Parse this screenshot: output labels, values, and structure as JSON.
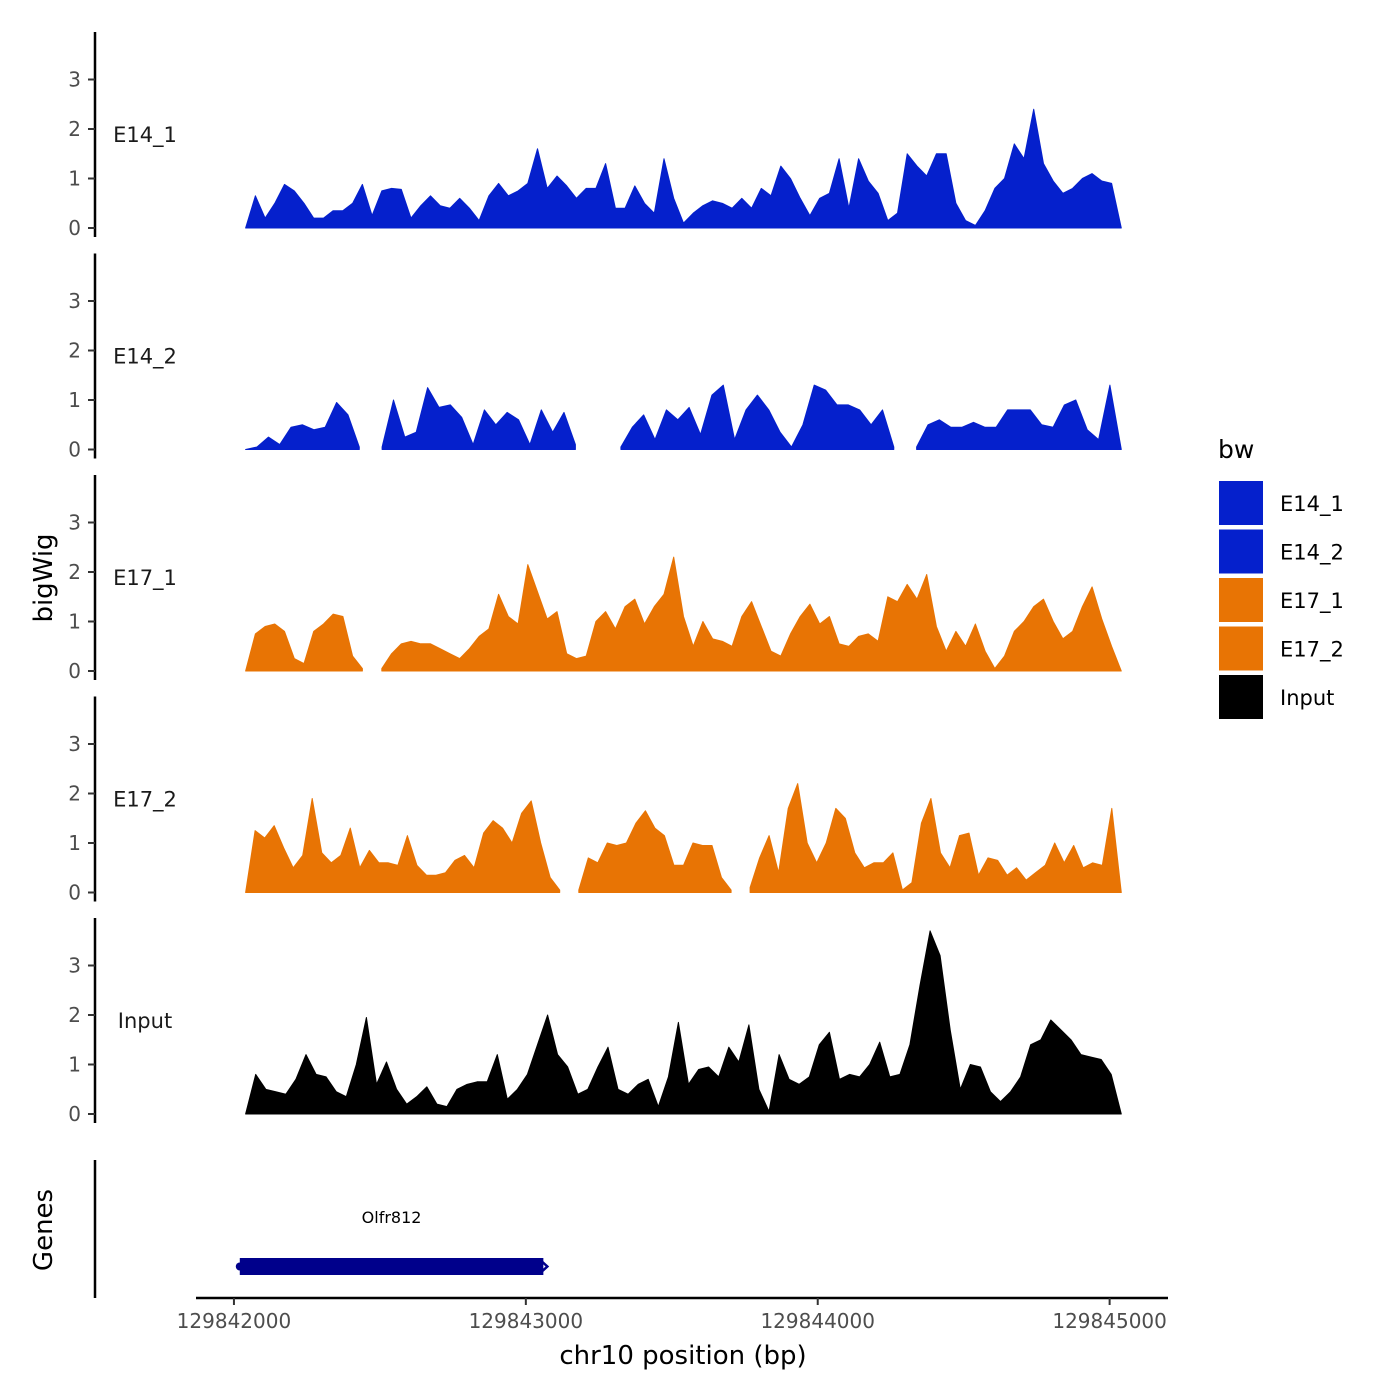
{
  "chart_data": {
    "type": "area",
    "x_range": [
      129842040,
      129845040
    ],
    "xlim": [
      129841870,
      129845200
    ],
    "ylim": [
      0,
      4
    ],
    "y_ticks": [
      0,
      1,
      2,
      3
    ],
    "x_ticks": [
      {
        "value": 129842000,
        "label": "129842000"
      },
      {
        "value": 129843000,
        "label": "129843000"
      },
      {
        "value": 129844000,
        "label": "129844000"
      },
      {
        "value": 129845000,
        "label": "129845000"
      }
    ],
    "xlabel": "chr10 position (bp)",
    "ylabel": "bigWig",
    "genes_label": "Genes",
    "series": [
      {
        "name": "E14_1",
        "color": "#0520CC",
        "values": [
          0,
          0.65,
          0.2,
          0.5,
          0.88,
          0.75,
          0.5,
          0.2,
          0.2,
          0.35,
          0.35,
          0.5,
          0.88,
          0.25,
          0.75,
          0.8,
          0.78,
          0.2,
          0.45,
          0.65,
          0.45,
          0.4,
          0.6,
          0.4,
          0.15,
          0.65,
          0.9,
          0.65,
          0.75,
          0.9,
          1.6,
          0.8,
          1.05,
          0.85,
          0.6,
          0.8,
          0.8,
          1.3,
          0.4,
          0.4,
          0.85,
          0.5,
          0.3,
          1.4,
          0.6,
          0.1,
          0.3,
          0.45,
          0.55,
          0.5,
          0.4,
          0.6,
          0.4,
          0.8,
          0.65,
          1.25,
          1.0,
          0.6,
          0.25,
          0.6,
          0.7,
          1.4,
          0.4,
          1.4,
          0.95,
          0.7,
          0.15,
          0.3,
          1.5,
          1.25,
          1.05,
          1.5,
          1.5,
          0.5,
          0.15,
          0.05,
          0.35,
          0.8,
          1.0,
          1.7,
          1.4,
          2.4,
          1.3,
          0.95,
          0.7,
          0.8,
          1.0,
          1.1,
          0.95,
          0.9,
          0
        ]
      },
      {
        "name": "E14_2",
        "color": "#0520CC",
        "values": [
          0,
          0.05,
          0.25,
          0.1,
          0.45,
          0.5,
          0.4,
          0.45,
          0.95,
          0.7,
          0.05,
          null,
          0.05,
          1.0,
          0.25,
          0.35,
          1.25,
          0.85,
          0.9,
          0.65,
          0.1,
          0.8,
          0.5,
          0.75,
          0.6,
          0.1,
          0.8,
          0.35,
          0.75,
          0.1,
          null,
          null,
          null,
          0.05,
          0.45,
          0.7,
          0.2,
          0.8,
          0.6,
          0.85,
          0.3,
          1.1,
          1.3,
          0.2,
          0.8,
          1.1,
          0.8,
          0.35,
          0.05,
          0.5,
          1.3,
          1.2,
          0.9,
          0.9,
          0.8,
          0.5,
          0.8,
          0.05,
          null,
          0.05,
          0.5,
          0.6,
          0.45,
          0.45,
          0.55,
          0.45,
          0.45,
          0.8,
          0.8,
          0.8,
          0.5,
          0.45,
          0.9,
          1.0,
          0.4,
          0.2,
          1.3,
          0
        ]
      },
      {
        "name": "E17_1",
        "color": "#E87404",
        "values": [
          0,
          0.75,
          0.9,
          0.95,
          0.8,
          0.25,
          0.15,
          0.8,
          0.95,
          1.15,
          1.1,
          0.3,
          0.05,
          null,
          0.05,
          0.35,
          0.55,
          0.6,
          0.55,
          0.55,
          0.45,
          0.35,
          0.25,
          0.45,
          0.7,
          0.85,
          1.55,
          1.1,
          0.95,
          2.15,
          1.6,
          1.05,
          1.2,
          0.35,
          0.25,
          0.3,
          1.0,
          1.2,
          0.85,
          1.3,
          1.45,
          0.95,
          1.3,
          1.55,
          2.3,
          1.1,
          0.5,
          1.0,
          0.65,
          0.6,
          0.5,
          1.1,
          1.4,
          0.9,
          0.4,
          0.3,
          0.75,
          1.1,
          1.35,
          0.95,
          1.1,
          0.55,
          0.5,
          0.7,
          0.75,
          0.6,
          1.5,
          1.4,
          1.75,
          1.45,
          1.95,
          0.9,
          0.4,
          0.8,
          0.5,
          0.95,
          0.4,
          0.05,
          0.3,
          0.8,
          1.0,
          1.3,
          1.45,
          1.0,
          0.65,
          0.8,
          1.3,
          1.7,
          1.05,
          0.5,
          0
        ]
      },
      {
        "name": "E17_2",
        "color": "#E87404",
        "values": [
          0,
          1.25,
          1.1,
          1.35,
          0.9,
          0.5,
          0.75,
          1.9,
          0.8,
          0.6,
          0.75,
          1.3,
          0.5,
          0.85,
          0.6,
          0.6,
          0.55,
          1.15,
          0.55,
          0.35,
          0.35,
          0.4,
          0.65,
          0.75,
          0.5,
          1.2,
          1.45,
          1.3,
          1.0,
          1.6,
          1.85,
          1.0,
          0.3,
          0.05,
          null,
          0.05,
          0.7,
          0.6,
          1.0,
          0.95,
          1.0,
          1.4,
          1.65,
          1.3,
          1.15,
          0.55,
          0.55,
          1.0,
          0.95,
          0.95,
          0.3,
          0.05,
          null,
          0.1,
          0.7,
          1.15,
          0.4,
          1.7,
          2.2,
          1.0,
          0.6,
          1.0,
          1.7,
          1.5,
          0.8,
          0.5,
          0.6,
          0.6,
          0.8,
          0.05,
          0.2,
          1.4,
          1.9,
          0.8,
          0.5,
          1.15,
          1.2,
          0.35,
          0.7,
          0.65,
          0.35,
          0.5,
          0.25,
          0.4,
          0.55,
          1.0,
          0.6,
          0.95,
          0.5,
          0.6,
          0.55,
          1.7,
          0
        ]
      },
      {
        "name": "Input",
        "color": "#000000",
        "values": [
          0,
          0.8,
          0.5,
          0.45,
          0.4,
          0.7,
          1.2,
          0.8,
          0.75,
          0.45,
          0.35,
          1.0,
          1.95,
          0.6,
          1.05,
          0.5,
          0.2,
          0.35,
          0.55,
          0.2,
          0.15,
          0.5,
          0.6,
          0.65,
          0.65,
          1.2,
          0.3,
          0.5,
          0.8,
          1.4,
          2.0,
          1.2,
          0.95,
          0.4,
          0.5,
          0.95,
          1.35,
          0.5,
          0.4,
          0.6,
          0.7,
          0.15,
          0.75,
          1.85,
          0.6,
          0.9,
          0.95,
          0.75,
          1.35,
          1.05,
          1.8,
          0.5,
          0.05,
          1.2,
          0.7,
          0.6,
          0.75,
          1.4,
          1.65,
          0.7,
          0.8,
          0.75,
          1.0,
          1.45,
          0.75,
          0.8,
          1.4,
          2.6,
          3.7,
          3.2,
          1.7,
          0.5,
          1.0,
          0.95,
          0.45,
          0.25,
          0.45,
          0.75,
          1.4,
          1.5,
          1.9,
          1.7,
          1.5,
          1.2,
          1.15,
          1.1,
          0.8,
          0
        ]
      }
    ],
    "gene": {
      "name": "Olfr812",
      "start": 129842020,
      "end": 129843060,
      "color": "#00008B"
    },
    "legend": {
      "title": "bw",
      "entries": [
        {
          "label": "E14_1",
          "color": "#0520CC"
        },
        {
          "label": "E14_2",
          "color": "#0520CC"
        },
        {
          "label": "E17_1",
          "color": "#E87404"
        },
        {
          "label": "E17_2",
          "color": "#E87404"
        },
        {
          "label": "Input",
          "color": "#000000"
        }
      ]
    }
  }
}
